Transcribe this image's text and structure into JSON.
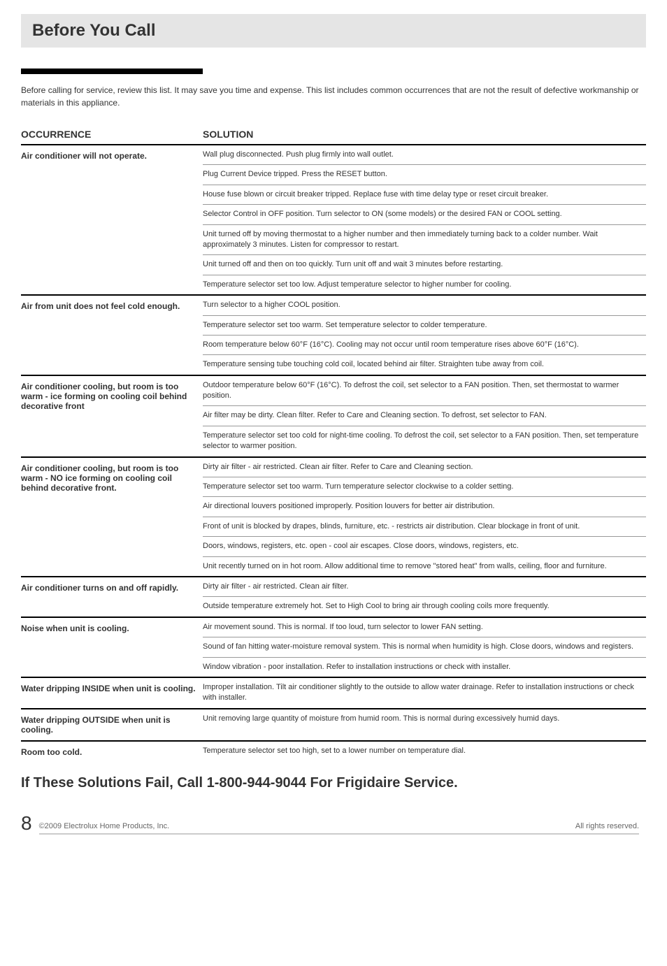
{
  "title": "Before You Call",
  "intro": "Before calling for service, review this list. It may save you time and expense. This list includes common occurrences that are not the result of defective workmanship or materials in this appliance.",
  "headers": {
    "occurrence": "OCCURRENCE",
    "solution": "SOLUTION"
  },
  "sections": [
    {
      "occurrence": "Air conditioner will not operate.",
      "solutions": [
        "Wall plug disconnected. Push plug firmly into wall outlet.",
        "Plug Current Device tripped. Press the RESET button.",
        "House fuse blown or circuit breaker tripped. Replace fuse with time delay type or reset circuit breaker.",
        "Selector Control in OFF position. Turn selector to ON (some models) or the desired FAN or COOL setting.",
        "Unit turned off by moving thermostat to a higher number and then immediately turning back to a colder number. Wait approximately 3 minutes. Listen for compressor to restart.",
        "Unit turned off and then on too quickly. Turn unit off and wait 3 minutes before restarting.",
        "Temperature selector set too low. Adjust temperature selector to higher number for cooling."
      ]
    },
    {
      "occurrence": "Air from unit does not feel cold enough.",
      "solutions": [
        "Turn selector to a higher COOL position.",
        "Temperature selector set too warm. Set temperature selector to colder temperature.",
        "Room temperature below 60°F (16°C). Cooling may not occur until room temperature rises above 60°F (16°C).",
        "Temperature sensing tube touching cold coil, located behind air filter. Straighten tube away from coil."
      ]
    },
    {
      "occurrence": "Air conditioner cooling, but room is too warm - ice forming on cooling coil behind decorative front",
      "solutions": [
        "Outdoor temperature below 60°F (16°C). To defrost the coil, set selector to a FAN position. Then, set thermostat to warmer position.",
        "Air filter may be dirty. Clean filter. Refer to Care and Cleaning section. To defrost, set selector to FAN.",
        "Temperature selector set too cold for night-time cooling. To defrost the coil, set selector to a FAN position. Then, set temperature selector to warmer position."
      ]
    },
    {
      "occurrence": "Air conditioner cooling, but room is too warm - NO ice forming on cooling coil behind decorative front.",
      "solutions": [
        "Dirty air filter - air restricted. Clean air filter. Refer to Care and Cleaning section.",
        "Temperature selector set too warm. Turn temperature selector clockwise to a colder setting.",
        "Air directional louvers positioned improperly. Position louvers for better air distribution.",
        "Front of unit is blocked by drapes, blinds, furniture, etc. - restricts air distribution. Clear blockage in front of unit.",
        "Doors, windows, registers, etc. open - cool air escapes. Close doors, windows, registers, etc.",
        "Unit recently turned on in hot room. Allow additional time to remove \"stored heat\" from walls, ceiling, floor and furniture."
      ]
    },
    {
      "occurrence": "Air conditioner turns on and off rapidly.",
      "solutions": [
        "Dirty air filter - air restricted. Clean air filter.",
        "Outside temperature extremely hot. Set to High Cool to bring air through cooling coils more frequently."
      ]
    },
    {
      "occurrence": "Noise when unit is cooling.",
      "solutions": [
        "Air movement sound. This is normal. If too loud, turn selector to lower FAN setting.",
        "Sound of fan hitting water-moisture removal system. This is normal when humidity is high. Close doors, windows and registers.",
        "Window vibration - poor installation. Refer to installation instructions or check with installer."
      ]
    },
    {
      "occurrence": "Water dripping INSIDE when unit is cooling.",
      "solutions": [
        "Improper installation. Tilt air conditioner slightly to the outside to allow water drainage. Refer to installation instructions or check with installer."
      ]
    },
    {
      "occurrence": "Water dripping OUTSIDE when unit is cooling.",
      "solutions": [
        "Unit removing large quantity of moisture from humid room. This is normal during excessively humid days."
      ]
    },
    {
      "occurrence": "Room too cold.",
      "solutions": [
        "Temperature selector set too high, set to a lower number on temperature dial."
      ]
    }
  ],
  "bottom_heading": "If These Solutions Fail, Call 1-800-944-9044 For Frigidaire Service.",
  "footer": {
    "page_number": "8",
    "copyright": "©2009 Electrolux Home Products, Inc.",
    "rights": "All rights reserved."
  },
  "colors": {
    "title_bg": "#e5e5e5",
    "text": "#333333",
    "border_thick": "#000000",
    "border_thin": "#999999",
    "footer_text": "#666666",
    "footer_line": "#cccccc"
  }
}
